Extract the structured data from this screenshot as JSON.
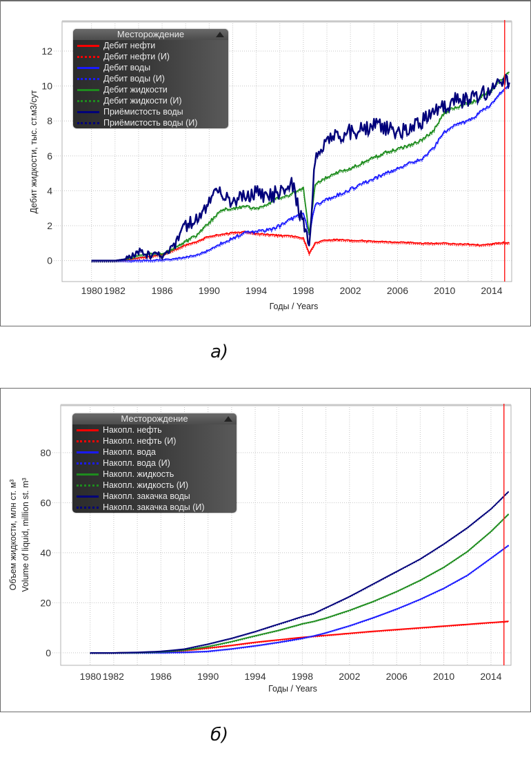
{
  "captions": {
    "a": "а)",
    "b": "б)"
  },
  "chart_data": [
    {
      "type": "line",
      "id": "a",
      "title": "",
      "xlabel": "Годы / Years",
      "ylabel": "Дебит жидкости, тыс. ст.м3/сут",
      "xlim": [
        1977.5,
        2015.7
      ],
      "ylim": [
        -1.2,
        13.7
      ],
      "xticks": [
        1980,
        1982,
        1986,
        1990,
        1994,
        1998,
        2002,
        2006,
        2010,
        2014
      ],
      "xtick_labels": [
        "1980",
        "1982",
        "1986",
        "1990",
        "1994",
        "1998",
        "2002",
        "2006",
        "2010",
        "2014"
      ],
      "yticks": [
        0,
        2,
        4,
        6,
        8,
        10,
        12
      ],
      "grid": true,
      "vline_x": 2015.1,
      "vline_color": "#ff2020",
      "legend": {
        "title": "Месторождение",
        "position": "top-left",
        "entries": [
          {
            "label": "Дебит нефти",
            "color": "#ff0000",
            "style": "solid"
          },
          {
            "label": "Дебит нефти (И)",
            "color": "#ff0000",
            "style": "dotted"
          },
          {
            "label": "Дебит воды",
            "color": "#1a1aff",
            "style": "solid"
          },
          {
            "label": "Дебит воды (И)",
            "color": "#1a1aff",
            "style": "dotted"
          },
          {
            "label": "Дебит жидкости",
            "color": "#1e8c1e",
            "style": "solid"
          },
          {
            "label": "Дебит жидкости (И)",
            "color": "#1e8c1e",
            "style": "dotted"
          },
          {
            "label": "Приёмистость воды",
            "color": "#00007a",
            "style": "solid"
          },
          {
            "label": "Приёмистость воды (И)",
            "color": "#00007a",
            "style": "dotted"
          }
        ]
      },
      "x": [
        1980,
        1982,
        1983,
        1984,
        1985,
        1986,
        1987,
        1988,
        1989,
        1990,
        1991,
        1992,
        1993,
        1994,
        1995,
        1996,
        1997,
        1998,
        1998.5,
        1999,
        2000,
        2001,
        2002,
        2003,
        2004,
        2005,
        2006,
        2007,
        2008,
        2009,
        2010,
        2011,
        2012,
        2013,
        2014,
        2015,
        2015.5
      ],
      "series": [
        {
          "name": "Дебит нефти",
          "color": "#ff0000",
          "values": [
            0,
            0,
            0.05,
            0.15,
            0.25,
            0.35,
            0.6,
            0.9,
            1.1,
            1.4,
            1.5,
            1.6,
            1.65,
            1.55,
            1.5,
            1.45,
            1.4,
            1.3,
            0.4,
            1.0,
            1.2,
            1.2,
            1.15,
            1.15,
            1.1,
            1.1,
            1.05,
            1.05,
            1.0,
            1.0,
            1.0,
            0.95,
            0.95,
            0.9,
            0.95,
            1.05,
            1.0
          ]
        },
        {
          "name": "Дебит воды",
          "color": "#1a1aff",
          "values": [
            0,
            0,
            0,
            0,
            0.02,
            0.05,
            0.1,
            0.2,
            0.35,
            0.6,
            1.0,
            1.3,
            1.6,
            1.7,
            1.75,
            2.0,
            2.4,
            2.8,
            1.5,
            3.2,
            3.5,
            3.8,
            4.1,
            4.4,
            4.7,
            5.0,
            5.3,
            5.6,
            5.8,
            6.4,
            7.4,
            7.8,
            8.0,
            8.5,
            9.0,
            9.8,
            10.0
          ]
        },
        {
          "name": "Дебит жидкости",
          "color": "#1e8c1e",
          "values": [
            0,
            0,
            0.1,
            0.3,
            0.4,
            0.4,
            0.7,
            1.1,
            1.5,
            2.2,
            2.9,
            3.0,
            3.1,
            3.0,
            3.3,
            3.6,
            3.8,
            4.2,
            1.5,
            4.4,
            4.8,
            5.1,
            5.3,
            5.6,
            5.9,
            6.2,
            6.4,
            6.6,
            6.9,
            7.4,
            8.5,
            8.8,
            9.0,
            9.3,
            9.8,
            10.5,
            10.8
          ]
        },
        {
          "name": "Приёмистость воды",
          "color": "#00007a",
          "values": [
            0,
            0,
            0.1,
            0.5,
            0.3,
            0.3,
            0.8,
            2.0,
            2.5,
            3.5,
            4.0,
            3.3,
            3.8,
            3.9,
            3.6,
            4.0,
            4.5,
            2.0,
            0.8,
            6.0,
            7.0,
            7.2,
            7.4,
            7.5,
            7.8,
            7.6,
            7.4,
            7.6,
            7.9,
            8.6,
            8.8,
            9.2,
            9.2,
            9.5,
            9.8,
            10.2,
            10.2
          ]
        }
      ]
    },
    {
      "type": "line",
      "id": "b",
      "title": "",
      "xlabel": "Годы / Years",
      "ylabel": "Объем жидкости, млн ст. м³",
      "ylabel2": "Volume of liquid, million st. m³",
      "xlim": [
        1977.5,
        2015.7
      ],
      "ylim": [
        -5,
        99
      ],
      "xticks": [
        1980,
        1982,
        1986,
        1990,
        1994,
        1998,
        2002,
        2006,
        2010,
        2014
      ],
      "xtick_labels": [
        "1980",
        "1982",
        "1986",
        "1990",
        "1994",
        "1998",
        "2002",
        "2006",
        "2010",
        "2014"
      ],
      "yticks": [
        0,
        20,
        40,
        60,
        80
      ],
      "grid": true,
      "vline_x": 2015.1,
      "vline_color": "#ff2020",
      "legend": {
        "title": "Месторождение",
        "position": "top-left",
        "entries": [
          {
            "label": "Накопл. нефть",
            "color": "#ff0000",
            "style": "solid"
          },
          {
            "label": "Накопл. нефть (И)",
            "color": "#ff0000",
            "style": "dotted"
          },
          {
            "label": "Накопл. вода",
            "color": "#1a1aff",
            "style": "solid"
          },
          {
            "label": "Накопл. вода (И)",
            "color": "#1a1aff",
            "style": "dotted"
          },
          {
            "label": "Накопл. жидкость",
            "color": "#1e8c1e",
            "style": "solid"
          },
          {
            "label": "Накопл. жидкость (И)",
            "color": "#1e8c1e",
            "style": "dotted"
          },
          {
            "label": "Накопл. закачка воды",
            "color": "#00007a",
            "style": "solid"
          },
          {
            "label": "Накопл. закачка воды (И)",
            "color": "#00007a",
            "style": "dotted"
          }
        ]
      },
      "x": [
        1980,
        1982,
        1984,
        1986,
        1988,
        1990,
        1992,
        1994,
        1996,
        1998,
        1999,
        2000,
        2002,
        2004,
        2006,
        2008,
        2010,
        2012,
        2014,
        2015.5
      ],
      "series": [
        {
          "name": "Накопл. нефть",
          "color": "#ff0000",
          "values": [
            0,
            0,
            0.1,
            0.3,
            0.9,
            1.9,
            3.0,
            4.2,
            5.2,
            6.2,
            6.6,
            7.0,
            7.8,
            8.6,
            9.3,
            10.0,
            10.7,
            11.4,
            12.1,
            12.6
          ]
        },
        {
          "name": "Накопл. вода",
          "color": "#1a1aff",
          "values": [
            0,
            0,
            0,
            0.05,
            0.2,
            0.6,
            1.6,
            2.8,
            4.2,
            5.8,
            6.8,
            8.0,
            10.8,
            14.0,
            17.5,
            21.4,
            25.8,
            31.0,
            37.8,
            43.0
          ]
        },
        {
          "name": "Накопл. жидкость",
          "color": "#1e8c1e",
          "values": [
            0,
            0,
            0.1,
            0.4,
            1.1,
            2.5,
            4.5,
            6.8,
            9.0,
            11.6,
            12.6,
            13.9,
            17.0,
            20.5,
            24.5,
            29.0,
            34.2,
            40.5,
            48.5,
            55.5
          ]
        },
        {
          "name": "Накопл. закачка воды",
          "color": "#00007a",
          "values": [
            0,
            0,
            0.2,
            0.6,
            1.5,
            3.5,
            5.8,
            8.5,
            11.5,
            14.5,
            15.8,
            18.0,
            22.5,
            27.5,
            32.5,
            37.5,
            43.5,
            50.0,
            57.5,
            64.5
          ]
        }
      ]
    }
  ]
}
